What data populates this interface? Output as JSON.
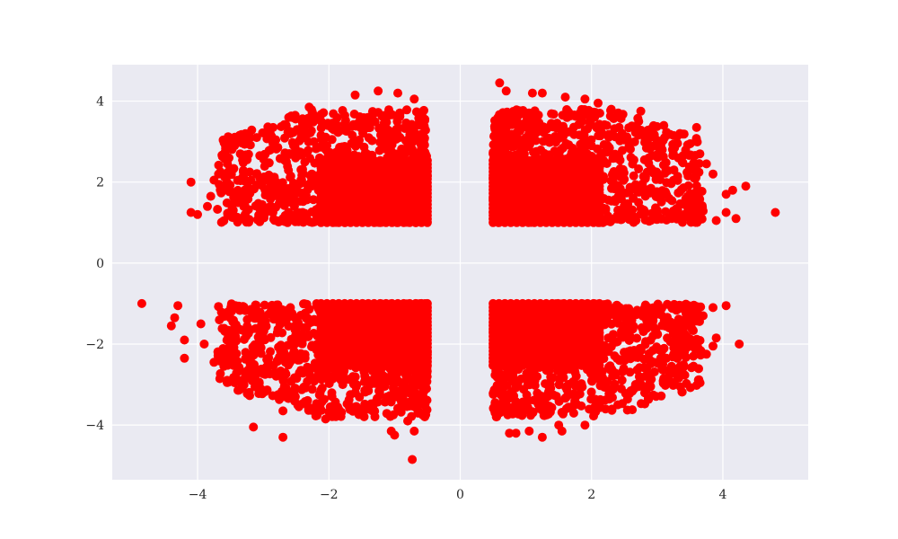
{
  "chart_data": {
    "type": "scatter",
    "title": "",
    "xlabel": "",
    "ylabel": "",
    "xlim": [
      -5.3,
      5.3
    ],
    "ylim": [
      -5.35,
      4.9
    ],
    "xticks": [
      -4,
      -2,
      0,
      2,
      4
    ],
    "yticks": [
      -4,
      -2,
      0,
      2,
      4
    ],
    "xtick_labels": [
      "−4",
      "−2",
      "0",
      "2",
      "4"
    ],
    "ytick_labels": [
      "−4",
      "−2",
      "0",
      "2",
      "4"
    ],
    "grid": true,
    "background": "#eaeaf2",
    "grid_color": "#ffffff",
    "marker_color": "#ff0000",
    "series": [
      {
        "values_description_free_points": [
          [
            -4.85,
            -1.0
          ],
          [
            -4.3,
            -1.05
          ],
          [
            -4.35,
            -1.35
          ],
          [
            -4.4,
            -1.55
          ],
          [
            -4.2,
            -1.9
          ],
          [
            -4.2,
            -2.35
          ],
          [
            -3.95,
            -1.5
          ],
          [
            -3.9,
            -2.0
          ],
          [
            -3.75,
            -2.45
          ],
          [
            -3.6,
            -2.55
          ],
          [
            -3.55,
            -2.95
          ],
          [
            -3.15,
            -4.05
          ],
          [
            -2.7,
            -4.3
          ],
          [
            -2.7,
            -3.65
          ],
          [
            -2.05,
            -3.85
          ],
          [
            -1.05,
            -4.15
          ],
          [
            -1.0,
            -4.25
          ],
          [
            -0.7,
            -4.15
          ],
          [
            -0.73,
            -4.85
          ],
          [
            -0.8,
            -3.9
          ],
          [
            -4.1,
            2.0
          ],
          [
            -4.1,
            1.25
          ],
          [
            -4.0,
            1.2
          ],
          [
            -3.85,
            1.4
          ],
          [
            -3.8,
            1.65
          ],
          [
            -3.75,
            2.05
          ],
          [
            -3.65,
            2.25
          ],
          [
            -3.55,
            2.0
          ],
          [
            -3.35,
            2.7
          ],
          [
            -3.2,
            3.1
          ],
          [
            -3.1,
            3.1
          ],
          [
            -2.85,
            3.35
          ],
          [
            -2.65,
            3.4
          ],
          [
            -2.45,
            3.3
          ],
          [
            -2.3,
            3.85
          ],
          [
            -1.6,
            4.15
          ],
          [
            -1.25,
            4.25
          ],
          [
            -0.95,
            4.2
          ],
          [
            -0.7,
            4.05
          ],
          [
            0.6,
            4.45
          ],
          [
            0.7,
            4.25
          ],
          [
            1.1,
            4.2
          ],
          [
            1.25,
            4.2
          ],
          [
            1.6,
            4.1
          ],
          [
            1.9,
            4.05
          ],
          [
            2.1,
            3.95
          ],
          [
            2.3,
            3.8
          ],
          [
            2.75,
            3.75
          ],
          [
            3.1,
            3.4
          ],
          [
            3.25,
            3.15
          ],
          [
            3.6,
            3.35
          ],
          [
            3.65,
            2.7
          ],
          [
            3.75,
            2.45
          ],
          [
            3.85,
            2.2
          ],
          [
            4.05,
            1.7
          ],
          [
            4.15,
            1.8
          ],
          [
            4.35,
            1.9
          ],
          [
            4.8,
            1.25
          ],
          [
            4.05,
            1.25
          ],
          [
            4.2,
            1.1
          ],
          [
            3.9,
            1.05
          ],
          [
            0.55,
            -3.8
          ],
          [
            0.75,
            -4.2
          ],
          [
            0.85,
            -4.2
          ],
          [
            1.05,
            -4.15
          ],
          [
            1.25,
            -4.3
          ],
          [
            1.5,
            -4.0
          ],
          [
            1.55,
            -4.15
          ],
          [
            1.9,
            -4.0
          ],
          [
            2.05,
            -3.55
          ],
          [
            2.4,
            -3.5
          ],
          [
            2.65,
            -3.1
          ],
          [
            2.9,
            -3.05
          ],
          [
            3.1,
            -2.85
          ],
          [
            3.35,
            -2.55
          ],
          [
            3.55,
            -2.3
          ],
          [
            3.75,
            -2.25
          ],
          [
            3.85,
            -2.05
          ],
          [
            3.9,
            -1.85
          ],
          [
            4.05,
            -1.05
          ],
          [
            4.25,
            -2.0
          ],
          [
            3.85,
            -1.1
          ],
          [
            3.7,
            -1.3
          ]
        ]
      }
    ]
  }
}
